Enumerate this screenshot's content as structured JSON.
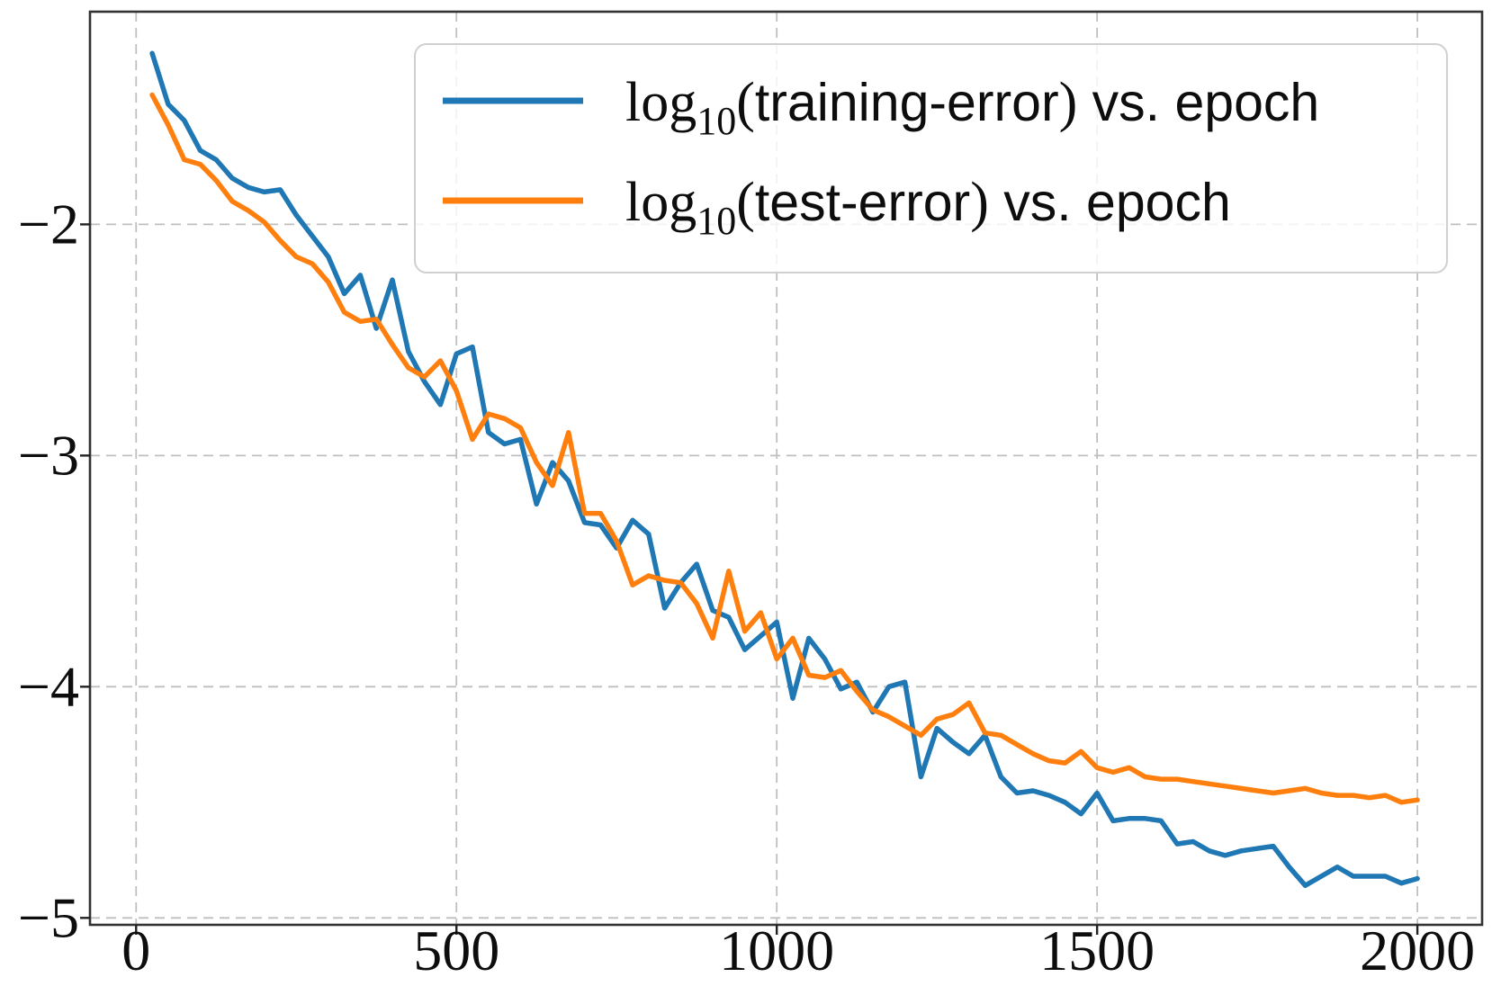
{
  "figure": {
    "background": "#ffffff",
    "grid_color": "#bfbfbf",
    "spine_color": "#333333",
    "tick_label_color": "#0d0d0d"
  },
  "chart_data": {
    "type": "line",
    "title": "",
    "xlabel": "",
    "ylabel": "",
    "grid": "dashed, on both axes at labeled ticks",
    "legend_position": "upper center-right, semi-transparent rounded box",
    "xlim": [
      -72,
      2101
    ],
    "ylim": [
      -5.03,
      -1.08
    ],
    "xticks": {
      "values": [
        0,
        500,
        1000,
        1500,
        2000
      ],
      "labels": [
        "0",
        "500",
        "1000",
        "1500",
        "2000"
      ]
    },
    "yticks": {
      "values": [
        -2,
        -3,
        -4,
        -5
      ],
      "labels": [
        "−2",
        "−3",
        "−4",
        "−5"
      ]
    },
    "x": [
      25,
      50,
      75,
      100,
      125,
      150,
      175,
      200,
      225,
      250,
      275,
      300,
      325,
      350,
      375,
      400,
      425,
      450,
      475,
      500,
      525,
      550,
      575,
      600,
      625,
      650,
      675,
      700,
      725,
      750,
      775,
      800,
      825,
      850,
      875,
      900,
      925,
      950,
      975,
      1000,
      1025,
      1050,
      1075,
      1100,
      1125,
      1150,
      1175,
      1200,
      1225,
      1250,
      1275,
      1300,
      1325,
      1350,
      1375,
      1400,
      1425,
      1450,
      1475,
      1500,
      1525,
      1550,
      1575,
      1600,
      1625,
      1650,
      1675,
      1700,
      1725,
      1750,
      1775,
      1800,
      1825,
      1850,
      1875,
      1900,
      1925,
      1950,
      1975,
      2000
    ],
    "series": [
      {
        "name": "log10(training-error)",
        "legend_text": "log10(training-error) vs. epoch",
        "color": "#1f77b4",
        "line_width": 5.5,
        "values": [
          -1.26,
          -1.48,
          -1.55,
          -1.68,
          -1.72,
          -1.8,
          -1.84,
          -1.86,
          -1.85,
          -1.96,
          -2.05,
          -2.14,
          -2.3,
          -2.22,
          -2.45,
          -2.24,
          -2.55,
          -2.68,
          -2.78,
          -2.56,
          -2.53,
          -2.9,
          -2.95,
          -2.93,
          -3.21,
          -3.03,
          -3.11,
          -3.29,
          -3.3,
          -3.4,
          -3.28,
          -3.34,
          -3.66,
          -3.55,
          -3.47,
          -3.67,
          -3.7,
          -3.84,
          -3.78,
          -3.72,
          -4.05,
          -3.79,
          -3.88,
          -4.01,
          -3.98,
          -4.11,
          -4.0,
          -3.98,
          -4.39,
          -4.18,
          -4.24,
          -4.29,
          -4.21,
          -4.39,
          -4.46,
          -4.45,
          -4.47,
          -4.5,
          -4.55,
          -4.46,
          -4.58,
          -4.57,
          -4.57,
          -4.58,
          -4.68,
          -4.67,
          -4.71,
          -4.73,
          -4.71,
          -4.7,
          -4.69,
          -4.78,
          -4.86,
          -4.82,
          -4.78,
          -4.82,
          -4.82,
          -4.82,
          -4.85,
          -4.83
        ]
      },
      {
        "name": "log10(test-error)",
        "legend_text": "log10(test-error) vs. epoch",
        "color": "#ff7f0e",
        "line_width": 5.5,
        "values": [
          -1.44,
          -1.57,
          -1.72,
          -1.74,
          -1.81,
          -1.9,
          -1.94,
          -1.99,
          -2.07,
          -2.14,
          -2.17,
          -2.25,
          -2.38,
          -2.42,
          -2.41,
          -2.52,
          -2.62,
          -2.66,
          -2.59,
          -2.72,
          -2.93,
          -2.82,
          -2.84,
          -2.88,
          -3.03,
          -3.13,
          -2.9,
          -3.25,
          -3.25,
          -3.37,
          -3.56,
          -3.52,
          -3.54,
          -3.55,
          -3.64,
          -3.79,
          -3.5,
          -3.76,
          -3.68,
          -3.88,
          -3.79,
          -3.95,
          -3.96,
          -3.93,
          -4.02,
          -4.1,
          -4.13,
          -4.17,
          -4.21,
          -4.14,
          -4.12,
          -4.07,
          -4.2,
          -4.21,
          -4.25,
          -4.29,
          -4.32,
          -4.33,
          -4.28,
          -4.35,
          -4.37,
          -4.35,
          -4.39,
          -4.4,
          -4.4,
          -4.41,
          -4.42,
          -4.43,
          -4.44,
          -4.45,
          -4.46,
          -4.45,
          -4.44,
          -4.46,
          -4.47,
          -4.47,
          -4.48,
          -4.47,
          -4.5,
          -4.49
        ]
      }
    ]
  },
  "legend": {
    "fill": "#ffffff",
    "fill_opacity": 0.8,
    "border_color": "#d0d0d0",
    "entries": [
      {
        "series": "training",
        "color": "#1f77b4",
        "parts": [
          {
            "text": "log",
            "style": "serif"
          },
          {
            "text": "10",
            "style": "sub"
          },
          {
            "text": "(",
            "style": "serif"
          },
          {
            "text": "training-error",
            "style": "sans"
          },
          {
            "text": ")",
            "style": "serif"
          },
          {
            "text": " vs.  epoch",
            "style": "sans"
          }
        ]
      },
      {
        "series": "test",
        "color": "#ff7f0e",
        "parts": [
          {
            "text": "log",
            "style": "serif"
          },
          {
            "text": "10",
            "style": "sub"
          },
          {
            "text": "(",
            "style": "serif"
          },
          {
            "text": "test-error",
            "style": "sans"
          },
          {
            "text": ")",
            "style": "serif"
          },
          {
            "text": " vs.  epoch",
            "style": "sans"
          }
        ]
      }
    ]
  }
}
